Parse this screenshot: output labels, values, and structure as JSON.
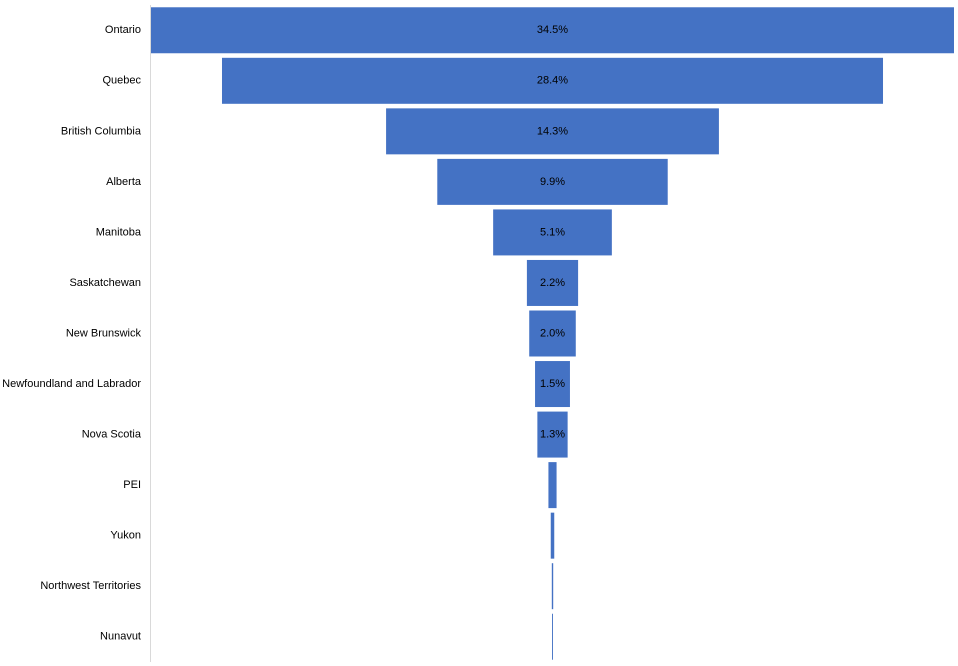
{
  "chart_data": {
    "type": "funnel",
    "categories": [
      "Ontario",
      "Quebec",
      "British Columbia",
      "Alberta",
      "Manitoba",
      "Saskatchewan",
      "New Brunswick",
      "Newfoundland and Labrador",
      "Nova Scotia",
      "PEI",
      "Yukon",
      "Northwest Territories",
      "Nunavut"
    ],
    "values": [
      34.5,
      28.4,
      14.3,
      9.9,
      5.1,
      2.2,
      2.0,
      1.5,
      1.3,
      0.35,
      0.15,
      0.06,
      0.04
    ],
    "value_labels": [
      "34.5%",
      "28.4%",
      "14.3%",
      "9.9%",
      "5.1%",
      "2.2%",
      "2.0%",
      "1.5%",
      "1.3%",
      null,
      null,
      null,
      null
    ],
    "color": "#4472c4"
  }
}
